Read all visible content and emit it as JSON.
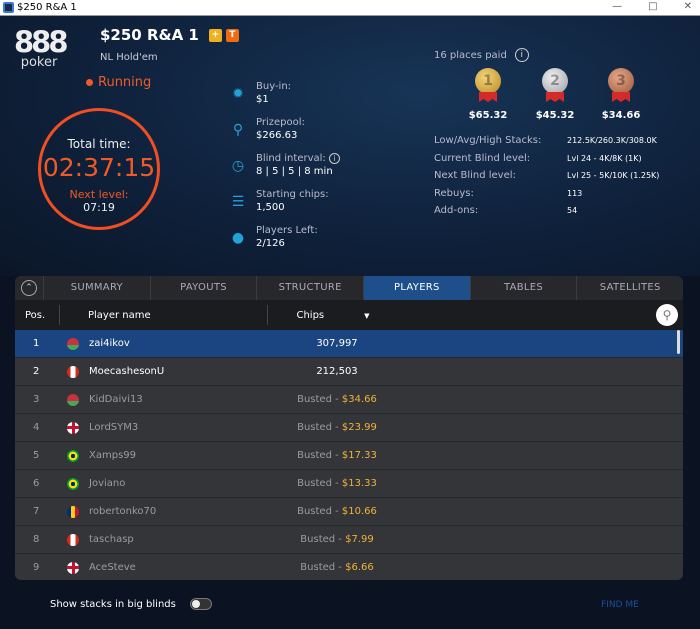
{
  "window": {
    "title": "$250 R&A 1"
  },
  "brand": {
    "logo_top": "888",
    "logo_bottom": "poker"
  },
  "tournament": {
    "name": "$250 R&A 1",
    "badges": [
      "+",
      "T"
    ],
    "game": "NL Hold'em",
    "status": "Running"
  },
  "clock": {
    "total_label": "Total time:",
    "total_time": "02:37:15",
    "next_label": "Next level:",
    "next_time": "07:19"
  },
  "info": [
    {
      "icon": "chip-icon",
      "label": "Buy-in:",
      "value": "$1"
    },
    {
      "icon": "trophy-icon",
      "label": "Prizepool:",
      "value": "$266.63"
    },
    {
      "icon": "clock-icon",
      "label": "Blind interval:",
      "value": "8 | 5 | 5 | 8 min"
    },
    {
      "icon": "chips-stack-icon",
      "label": "Starting chips:",
      "value": "1,500"
    },
    {
      "icon": "person-icon",
      "label": "Players Left:",
      "value": "2/126"
    }
  ],
  "payouts": {
    "places_paid": "16 places paid",
    "medals": [
      {
        "place": "1",
        "amount": "$65.32",
        "color": "#d4a83a"
      },
      {
        "place": "2",
        "amount": "$45.32",
        "color": "#c0c2c6"
      },
      {
        "place": "3",
        "amount": "$34.66",
        "color": "#b86e4e"
      }
    ]
  },
  "stats": [
    {
      "label": "Low/Avg/High Stacks:",
      "value": "212.5K/260.3K/308.0K"
    },
    {
      "label": "Current Blind level:",
      "value": "Lvl 24 - 4K/8K (1K)"
    },
    {
      "label": "Next Blind level:",
      "value": "Lvl 25 - 5K/10K (1.25K)"
    },
    {
      "label": "Rebuys:",
      "value": "113"
    },
    {
      "label": "Add-ons:",
      "value": "54"
    }
  ],
  "tabs": [
    "SUMMARY",
    "PAYOUTS",
    "STRUCTURE",
    "PLAYERS",
    "TABLES",
    "SATELLITES"
  ],
  "active_tab": "PLAYERS",
  "columns": {
    "pos": "Pos.",
    "name": "Player name",
    "chips": "Chips"
  },
  "players": [
    {
      "pos": "1",
      "name": "zai4ikov",
      "flag": "belarus",
      "chips": "307,997",
      "busted": "",
      "prize": ""
    },
    {
      "pos": "2",
      "name": "MoecashesonU",
      "flag": "canada",
      "chips": "212,503",
      "busted": "",
      "prize": ""
    },
    {
      "pos": "3",
      "name": "KidDaivi13",
      "flag": "belarus",
      "chips": "",
      "busted": "Busted - ",
      "prize": "$34.66"
    },
    {
      "pos": "4",
      "name": "LordSYM3",
      "flag": "uk",
      "chips": "",
      "busted": "Busted - ",
      "prize": "$23.99"
    },
    {
      "pos": "5",
      "name": "Xamps99",
      "flag": "brazil",
      "chips": "",
      "busted": "Busted - ",
      "prize": "$17.33"
    },
    {
      "pos": "6",
      "name": "Joviano",
      "flag": "brazil",
      "chips": "",
      "busted": "Busted - ",
      "prize": "$13.33"
    },
    {
      "pos": "7",
      "name": "robertonko70",
      "flag": "romania",
      "chips": "",
      "busted": "Busted - ",
      "prize": "$10.66"
    },
    {
      "pos": "8",
      "name": "taschasp",
      "flag": "canada",
      "chips": "",
      "busted": "Busted - ",
      "prize": "$7.99"
    },
    {
      "pos": "9",
      "name": "AceSteve",
      "flag": "uk",
      "chips": "",
      "busted": "Busted - ",
      "prize": "$6.66"
    }
  ],
  "footer": {
    "toggle_label": "Show stacks in big blinds",
    "toggle_on": false,
    "find_me": "FIND ME"
  }
}
